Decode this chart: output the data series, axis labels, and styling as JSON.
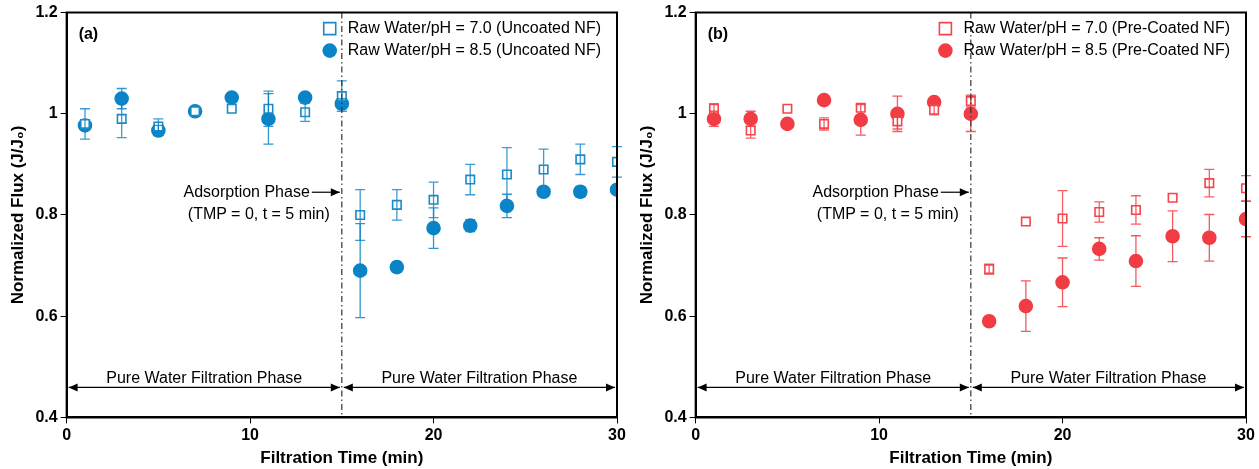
{
  "chart_data": [
    {
      "type": "scatter",
      "xlabel": "Filtration Time (min)",
      "ylabel": "Normalized Flux (J/J₀)",
      "xlim": [
        0,
        30
      ],
      "xticks": [
        0,
        10,
        20,
        30
      ],
      "ylim": [
        0.4,
        1.2
      ],
      "yticks": [
        0.4,
        0.6,
        0.8,
        1.0,
        1.2
      ],
      "x": [
        1,
        3,
        5,
        7,
        9,
        11,
        13,
        15,
        16,
        18,
        20,
        22,
        24,
        26,
        28,
        30
      ],
      "legend": "top right",
      "grid": false,
      "series": [
        {
          "name": "Raw Water/pH = 7.0 (Uncoated NF)",
          "color": "#1a8ac8",
          "marker": "square",
          "values": [
            0.98,
            0.99,
            0.975,
            1.005,
            1.01,
            1.01,
            1.003,
            1.035,
            0.8,
            0.82,
            0.83,
            0.87,
            0.88,
            0.89,
            0.91,
            0.905
          ],
          "errors": [
            0.03,
            0.037,
            0.015,
            null,
            null,
            0.035,
            0.018,
            0.03,
            0.05,
            0.03,
            0.035,
            0.03,
            0.053,
            0.04,
            0.03,
            0.03
          ]
        },
        {
          "name": "Raw Water/pH = 8.5 (Uncoated NF)",
          "color": "#0a84c6",
          "marker": "circle",
          "values": [
            0.977,
            1.03,
            0.967,
            1.005,
            1.032,
            0.99,
            1.032,
            1.02,
            0.69,
            0.697,
            0.774,
            0.779,
            0.818,
            0.846,
            0.846,
            0.85
          ],
          "errors": [
            null,
            0.02,
            0.01,
            null,
            null,
            0.05,
            null,
            0.01,
            0.093,
            0.01,
            0.04,
            0.012,
            0.023,
            null,
            0.01,
            null
          ]
        }
      ],
      "ref_lines": [
        {
          "axis": "x",
          "value": 15,
          "line_style": "dashdot"
        }
      ],
      "annotations": [
        "(a)",
        {
          "text": "Adsorption Phase",
          "x": 15,
          "y": 0.845
        },
        "(TMP = 0, t = 5 min)",
        "Pure Water Filtration Phase",
        "Pure Water Filtration Phase"
      ]
    },
    {
      "type": "scatter",
      "xlabel": "Filtration Time (min)",
      "ylabel": "Normalized Flux (J/J₀)",
      "xlim": [
        0,
        30
      ],
      "xticks": [
        0,
        10,
        20,
        30
      ],
      "ylim": [
        0.4,
        1.2
      ],
      "yticks": [
        0.4,
        0.6,
        0.8,
        1.0,
        1.2
      ],
      "x": [
        1,
        3,
        5,
        7,
        9,
        11,
        13,
        15,
        16,
        18,
        20,
        22,
        24,
        26,
        28,
        30
      ],
      "legend": "top right",
      "grid": false,
      "series": [
        {
          "name": "Raw Water/pH = 7.0 (Pre-Coated NF)",
          "color": "#f5444a",
          "marker": "square",
          "values": [
            1.01,
            0.967,
            1.01,
            0.98,
            1.012,
            0.985,
            1.008,
            1.025,
            0.693,
            0.787,
            0.793,
            0.806,
            0.81,
            0.834,
            0.863,
            0.853
          ],
          "errors": [
            0.01,
            0.015,
            null,
            0.012,
            null,
            0.015,
            0.01,
            0.012,
            0.01,
            null,
            0.055,
            0.02,
            0.028,
            null,
            0.027,
            0.025
          ]
        },
        {
          "name": "Raw Water/pH = 8.5 (Pre-Coated NF)",
          "color": "#f23c44",
          "marker": "circle",
          "values": [
            0.99,
            0.99,
            0.98,
            1.027,
            0.988,
            1.0,
            1.023,
            1.0,
            0.59,
            0.62,
            0.667,
            0.733,
            0.709,
            0.758,
            0.755,
            0.792
          ],
          "errors": [
            0.015,
            0.015,
            null,
            null,
            0.03,
            0.035,
            null,
            0.035,
            null,
            0.05,
            0.048,
            0.022,
            0.05,
            0.05,
            0.046,
            0.035
          ]
        }
      ],
      "ref_lines": [
        {
          "axis": "x",
          "value": 15,
          "line_style": "dashdot"
        }
      ],
      "annotations": [
        "(b)",
        {
          "text": "Adsorption Phase",
          "x": 15,
          "y": 0.845
        },
        "(TMP = 0, t = 5 min)",
        "Pure Water Filtration Phase",
        "Pure Water Filtration Phase"
      ]
    }
  ]
}
